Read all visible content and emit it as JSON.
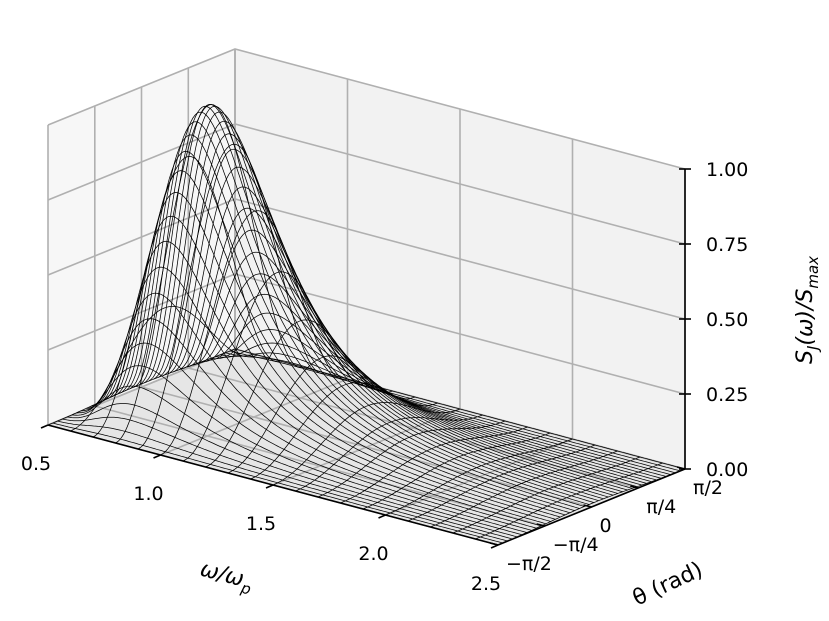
{
  "chart_data": {
    "type": "surface",
    "wireframe": true,
    "x": {
      "label": "ω/ω",
      "label_sub": "p",
      "range": [
        0.5,
        2.5
      ],
      "ticks": [
        0.5,
        1.0,
        1.5,
        2.0,
        2.5
      ],
      "tick_labels": [
        "0.5",
        "1.0",
        "1.5",
        "2.0",
        "2.5"
      ]
    },
    "y": {
      "label": "θ (rad)",
      "range": [
        -1.5708,
        1.5708
      ],
      "ticks": [
        -1.5708,
        -0.7854,
        0,
        0.7854,
        1.5708
      ],
      "tick_labels": [
        "−π/2",
        "−π/4",
        "0",
        "π/4",
        "π/2"
      ]
    },
    "z": {
      "label_main": "S",
      "label_sub1": "J",
      "label_mid": "(ω)/S",
      "label_sub2": "max",
      "range": [
        0,
        1
      ],
      "ticks": [
        0,
        0.25,
        0.5,
        0.75,
        1.0
      ],
      "tick_labels": [
        "0.00",
        "0.25",
        "0.50",
        "0.75",
        "1.00"
      ]
    },
    "surface": {
      "peak_x": 0.8,
      "peak_value": 1.0,
      "angular_spreading": "cos^2(θ)",
      "grid_x_lines": 21,
      "grid_y_lines": 40
    },
    "grid": true
  }
}
